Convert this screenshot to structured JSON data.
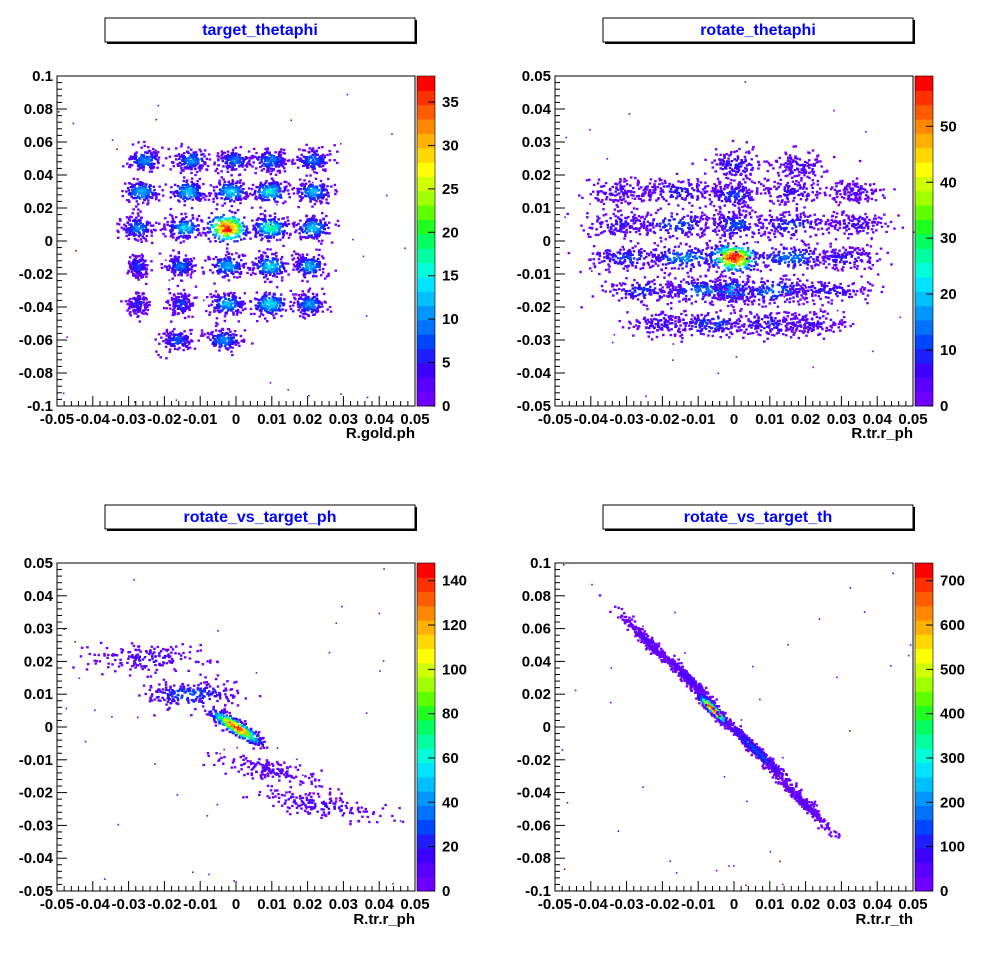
{
  "chart_data": [
    {
      "type": "heatmap",
      "title": "target_thetaphi",
      "xlabel": "R.gold.ph",
      "ylabel": "",
      "xlim": [
        -0.05,
        0.05
      ],
      "ylim": [
        -0.1,
        0.1
      ],
      "x_ticks": [
        "-0.05",
        "-0.04",
        "-0.03",
        "-0.02",
        "-0.01",
        "0",
        "0.01",
        "0.02",
        "0.03",
        "0.04",
        "0.05"
      ],
      "y_ticks": [
        "-0.1",
        "-0.08",
        "-0.06",
        "-0.04",
        "-0.02",
        "0",
        "0.02",
        "0.04",
        "0.06",
        "0.08",
        "0.1"
      ],
      "z_range": [
        0,
        38
      ],
      "z_ticks": [
        "0",
        "5",
        "10",
        "15",
        "20",
        "25",
        "30",
        "35"
      ],
      "clusters": [
        {
          "x": -0.0255,
          "y": 0.049,
          "sx": 0.0025,
          "sy": 0.0035,
          "peak": 10
        },
        {
          "x": -0.0125,
          "y": 0.049,
          "sx": 0.0025,
          "sy": 0.0035,
          "peak": 10
        },
        {
          "x": -0.0005,
          "y": 0.049,
          "sx": 0.0025,
          "sy": 0.0035,
          "peak": 9
        },
        {
          "x": 0.0095,
          "y": 0.049,
          "sx": 0.0025,
          "sy": 0.0035,
          "peak": 10
        },
        {
          "x": 0.0215,
          "y": 0.049,
          "sx": 0.0025,
          "sy": 0.0035,
          "peak": 9
        },
        {
          "x": -0.0265,
          "y": 0.03,
          "sx": 0.0025,
          "sy": 0.0035,
          "peak": 12
        },
        {
          "x": -0.0135,
          "y": 0.03,
          "sx": 0.0025,
          "sy": 0.0035,
          "peak": 13
        },
        {
          "x": -0.0015,
          "y": 0.03,
          "sx": 0.0025,
          "sy": 0.0035,
          "peak": 14
        },
        {
          "x": 0.0095,
          "y": 0.03,
          "sx": 0.0025,
          "sy": 0.0035,
          "peak": 15
        },
        {
          "x": 0.0215,
          "y": 0.03,
          "sx": 0.0025,
          "sy": 0.0035,
          "peak": 12
        },
        {
          "x": -0.0275,
          "y": 0.008,
          "sx": 0.0022,
          "sy": 0.0035,
          "peak": 10
        },
        {
          "x": -0.0145,
          "y": 0.008,
          "sx": 0.0025,
          "sy": 0.0035,
          "peak": 13
        },
        {
          "x": -0.0025,
          "y": 0.008,
          "sx": 0.0028,
          "sy": 0.0045,
          "peak": 38
        },
        {
          "x": 0.0095,
          "y": 0.008,
          "sx": 0.0025,
          "sy": 0.0035,
          "peak": 18
        },
        {
          "x": 0.0215,
          "y": 0.008,
          "sx": 0.0025,
          "sy": 0.0035,
          "peak": 13
        },
        {
          "x": -0.0275,
          "y": -0.015,
          "sx": 0.0015,
          "sy": 0.0035,
          "peak": 7
        },
        {
          "x": -0.0155,
          "y": -0.015,
          "sx": 0.0022,
          "sy": 0.0035,
          "peak": 9
        },
        {
          "x": -0.0025,
          "y": -0.015,
          "sx": 0.0025,
          "sy": 0.0035,
          "peak": 12
        },
        {
          "x": 0.0095,
          "y": -0.015,
          "sx": 0.0025,
          "sy": 0.0035,
          "peak": 14
        },
        {
          "x": 0.0205,
          "y": -0.015,
          "sx": 0.0022,
          "sy": 0.0035,
          "peak": 12
        },
        {
          "x": -0.0275,
          "y": -0.038,
          "sx": 0.0015,
          "sy": 0.0035,
          "peak": 6
        },
        {
          "x": -0.0155,
          "y": -0.038,
          "sx": 0.0018,
          "sy": 0.0035,
          "peak": 7
        },
        {
          "x": -0.0025,
          "y": -0.038,
          "sx": 0.0025,
          "sy": 0.0035,
          "peak": 12
        },
        {
          "x": 0.0095,
          "y": -0.038,
          "sx": 0.0025,
          "sy": 0.0035,
          "peak": 15
        },
        {
          "x": 0.0205,
          "y": -0.038,
          "sx": 0.0022,
          "sy": 0.0035,
          "peak": 11
        },
        {
          "x": -0.0165,
          "y": -0.06,
          "sx": 0.0022,
          "sy": 0.0035,
          "peak": 8
        },
        {
          "x": -0.0035,
          "y": -0.06,
          "sx": 0.0025,
          "sy": 0.0035,
          "peak": 10
        }
      ]
    },
    {
      "type": "heatmap",
      "title": "rotate_thetaphi",
      "xlabel": "R.tr.r_ph",
      "ylabel": "",
      "xlim": [
        -0.05,
        0.05
      ],
      "ylim": [
        -0.05,
        0.05
      ],
      "x_ticks": [
        "-0.05",
        "-0.04",
        "-0.03",
        "-0.02",
        "-0.01",
        "0",
        "0.01",
        "0.02",
        "0.03",
        "0.04",
        "0.05"
      ],
      "y_ticks": [
        "-0.05",
        "-0.04",
        "-0.03",
        "-0.02",
        "-0.01",
        "0",
        "0.01",
        "0.02",
        "0.03",
        "0.04",
        "0.05"
      ],
      "z_range": [
        0,
        59
      ],
      "z_ticks": [
        "0",
        "10",
        "20",
        "30",
        "40",
        "50"
      ],
      "clusters": [
        {
          "x": 0.0,
          "y": 0.023,
          "sx": 0.004,
          "sy": 0.0025,
          "peak": 8
        },
        {
          "x": 0.018,
          "y": 0.023,
          "sx": 0.004,
          "sy": 0.0022,
          "peak": 6
        },
        {
          "x": -0.032,
          "y": 0.015,
          "sx": 0.005,
          "sy": 0.002,
          "peak": 6
        },
        {
          "x": -0.016,
          "y": 0.015,
          "sx": 0.006,
          "sy": 0.002,
          "peak": 9
        },
        {
          "x": 0.0,
          "y": 0.014,
          "sx": 0.004,
          "sy": 0.0022,
          "peak": 10
        },
        {
          "x": 0.016,
          "y": 0.015,
          "sx": 0.005,
          "sy": 0.002,
          "peak": 7
        },
        {
          "x": 0.034,
          "y": 0.015,
          "sx": 0.004,
          "sy": 0.0018,
          "peak": 5
        },
        {
          "x": -0.032,
          "y": 0.005,
          "sx": 0.005,
          "sy": 0.002,
          "peak": 8
        },
        {
          "x": -0.016,
          "y": 0.005,
          "sx": 0.006,
          "sy": 0.002,
          "peak": 12
        },
        {
          "x": 0.0,
          "y": 0.005,
          "sx": 0.004,
          "sy": 0.0022,
          "peak": 12
        },
        {
          "x": 0.016,
          "y": 0.005,
          "sx": 0.006,
          "sy": 0.002,
          "peak": 10
        },
        {
          "x": 0.034,
          "y": 0.005,
          "sx": 0.005,
          "sy": 0.0018,
          "peak": 6
        },
        {
          "x": -0.03,
          "y": -0.005,
          "sx": 0.006,
          "sy": 0.002,
          "peak": 10
        },
        {
          "x": -0.014,
          "y": -0.005,
          "sx": 0.006,
          "sy": 0.002,
          "peak": 15
        },
        {
          "x": 0.0,
          "y": -0.005,
          "sx": 0.0035,
          "sy": 0.0022,
          "peak": 59
        },
        {
          "x": 0.016,
          "y": -0.005,
          "sx": 0.006,
          "sy": 0.002,
          "peak": 14
        },
        {
          "x": 0.031,
          "y": -0.005,
          "sx": 0.005,
          "sy": 0.0018,
          "peak": 8
        },
        {
          "x": -0.025,
          "y": -0.015,
          "sx": 0.006,
          "sy": 0.002,
          "peak": 10
        },
        {
          "x": -0.009,
          "y": -0.015,
          "sx": 0.006,
          "sy": 0.002,
          "peak": 14
        },
        {
          "x": 0.0,
          "y": -0.015,
          "sx": 0.003,
          "sy": 0.002,
          "peak": 18
        },
        {
          "x": 0.011,
          "y": -0.015,
          "sx": 0.006,
          "sy": 0.002,
          "peak": 14
        },
        {
          "x": 0.026,
          "y": -0.015,
          "sx": 0.006,
          "sy": 0.0018,
          "peak": 8
        },
        {
          "x": -0.02,
          "y": -0.025,
          "sx": 0.005,
          "sy": 0.002,
          "peak": 7
        },
        {
          "x": -0.006,
          "y": -0.025,
          "sx": 0.006,
          "sy": 0.002,
          "peak": 11
        },
        {
          "x": 0.01,
          "y": -0.025,
          "sx": 0.006,
          "sy": 0.002,
          "peak": 9
        },
        {
          "x": 0.021,
          "y": -0.025,
          "sx": 0.005,
          "sy": 0.0018,
          "peak": 6
        }
      ]
    },
    {
      "type": "heatmap",
      "title": "rotate_vs_target_ph",
      "xlabel": "R.tr.r_ph",
      "ylabel": "",
      "xlim": [
        -0.05,
        0.05
      ],
      "ylim": [
        -0.05,
        0.05
      ],
      "x_ticks": [
        "-0.05",
        "-0.04",
        "-0.03",
        "-0.02",
        "-0.01",
        "0",
        "0.01",
        "0.02",
        "0.03",
        "0.04",
        "0.05"
      ],
      "y_ticks": [
        "-0.05",
        "-0.04",
        "-0.03",
        "-0.02",
        "-0.01",
        "0",
        "0.01",
        "0.02",
        "0.03",
        "0.04",
        "0.05"
      ],
      "z_range": [
        0,
        148
      ],
      "z_ticks": [
        "0",
        "20",
        "40",
        "60",
        "80",
        "100",
        "120",
        "140"
      ],
      "clusters": [
        {
          "x": -0.025,
          "y": 0.021,
          "sx": 0.008,
          "sy": 0.0022,
          "peak": 15
        },
        {
          "x": -0.013,
          "y": 0.01,
          "sx": 0.007,
          "sy": 0.0022,
          "peak": 30
        },
        {
          "x": 0.0,
          "y": 0.0,
          "sx": 0.0035,
          "sy": 0.0012,
          "peak": 148,
          "slope": -0.65
        },
        {
          "x": 0.009,
          "y": -0.013,
          "sx": 0.007,
          "sy": 0.0016,
          "peak": 12,
          "slope": -0.2
        },
        {
          "x": 0.024,
          "y": -0.024,
          "sx": 0.009,
          "sy": 0.0018,
          "peak": 14,
          "slope": -0.18
        }
      ]
    },
    {
      "type": "heatmap",
      "title": "rotate_vs_target_th",
      "xlabel": "R.tr.r_th",
      "ylabel": "",
      "xlim": [
        -0.05,
        0.05
      ],
      "ylim": [
        -0.1,
        0.1
      ],
      "x_ticks": [
        "-0.05",
        "-0.04",
        "-0.03",
        "-0.02",
        "-0.01",
        "0",
        "0.01",
        "0.02",
        "0.03",
        "0.04",
        "0.05"
      ],
      "y_ticks": [
        "-0.1",
        "-0.08",
        "-0.06",
        "-0.04",
        "-0.02",
        "0",
        "0.02",
        "0.04",
        "0.06",
        "0.08",
        "0.1"
      ],
      "z_range": [
        0,
        740
      ],
      "z_ticks": [
        "0",
        "100",
        "200",
        "300",
        "400",
        "500",
        "600",
        "700"
      ],
      "clusters": [
        {
          "x": -0.024,
          "y": 0.052,
          "sx": 0.004,
          "sy": 0.002,
          "peak": 60,
          "slope": -2.1
        },
        {
          "x": -0.013,
          "y": 0.03,
          "sx": 0.004,
          "sy": 0.002,
          "peak": 80,
          "slope": -2.1
        },
        {
          "x": -0.006,
          "y": 0.011,
          "sx": 0.002,
          "sy": 0.0015,
          "peak": 740,
          "slope": -2.1
        },
        {
          "x": 0.006,
          "y": -0.014,
          "sx": 0.005,
          "sy": 0.002,
          "peak": 150,
          "slope": -2.1
        },
        {
          "x": 0.019,
          "y": -0.045,
          "sx": 0.004,
          "sy": 0.0018,
          "peak": 60,
          "slope": -2.1
        }
      ]
    }
  ]
}
